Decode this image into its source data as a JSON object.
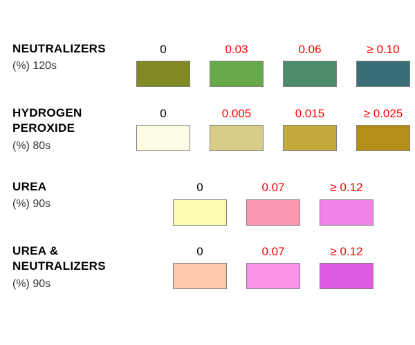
{
  "sections": [
    {
      "title_lines": [
        "NEUTRALIZERS"
      ],
      "subtitle": "(%) 120s",
      "levels": [
        {
          "label": "0",
          "color": "#818a24"
        },
        {
          "label": "0.03",
          "color": "#68a94a"
        },
        {
          "label": "0.06",
          "color": "#4e8b6b"
        },
        {
          "label": "≥  0.10",
          "color": "#3a6e76"
        }
      ]
    },
    {
      "title_lines": [
        "HYDROGEN",
        "PEROXIDE"
      ],
      "subtitle": "(%) 80s",
      "levels": [
        {
          "label": "0",
          "color": "#fdfde6"
        },
        {
          "label": "0.005",
          "color": "#d8cd87"
        },
        {
          "label": "0.015",
          "color": "#c4a93d"
        },
        {
          "label": "≥  0.025",
          "color": "#b58e1a"
        }
      ]
    },
    {
      "title_lines": [
        "UREA"
      ],
      "subtitle": "(%) 90s",
      "levels": [
        {
          "label": "0",
          "color": "#fbfbb0"
        },
        {
          "label": "0.07",
          "color": "#fc97b2"
        },
        {
          "label": "≥  0.12",
          "color": "#f283e6"
        }
      ]
    },
    {
      "title_lines": [
        "UREA &",
        "NEUTRALIZERS"
      ],
      "subtitle": "(%) 90s",
      "levels": [
        {
          "label": "0",
          "color": "#fcc7ab"
        },
        {
          "label": "0.07",
          "color": "#fb92e8"
        },
        {
          "label": "≥  0.12",
          "color": "#de5ae0"
        }
      ]
    }
  ]
}
